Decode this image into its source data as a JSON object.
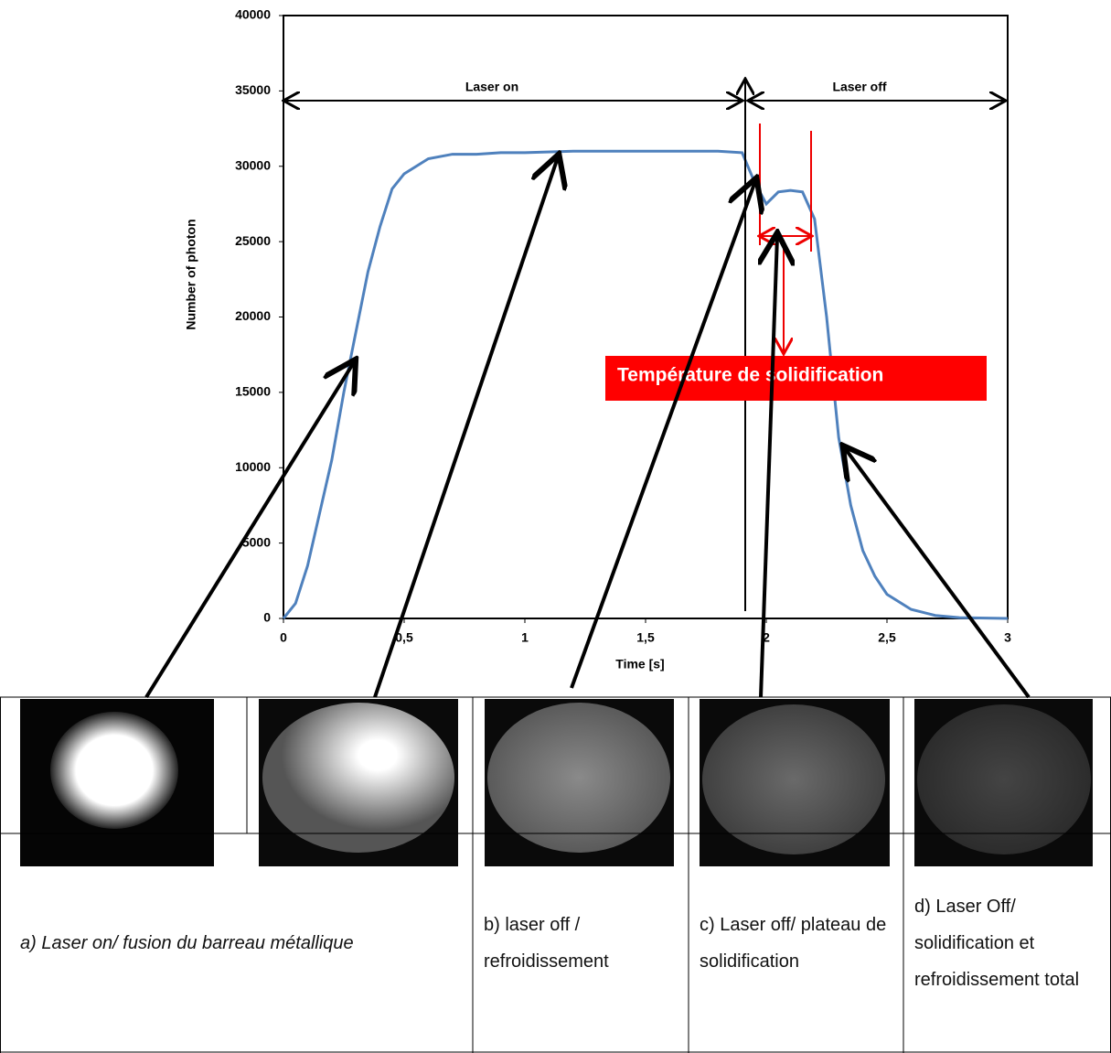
{
  "chart_data": {
    "type": "line",
    "x": [
      0,
      0.05,
      0.1,
      0.15,
      0.2,
      0.25,
      0.3,
      0.35,
      0.4,
      0.45,
      0.5,
      0.55,
      0.6,
      0.7,
      0.8,
      0.9,
      1.0,
      1.2,
      1.4,
      1.6,
      1.8,
      1.9,
      1.95,
      2.0,
      2.05,
      2.1,
      2.15,
      2.2,
      2.25,
      2.3,
      2.35,
      2.4,
      2.45,
      2.5,
      2.6,
      2.7,
      2.8,
      3.0
    ],
    "values": [
      0,
      1000,
      3500,
      7000,
      10500,
      15000,
      19000,
      23000,
      26000,
      28500,
      29500,
      30000,
      30500,
      30800,
      30800,
      30900,
      30900,
      31000,
      31000,
      31000,
      31000,
      30900,
      29000,
      27500,
      28300,
      28400,
      28300,
      26500,
      20000,
      12000,
      7500,
      4500,
      2800,
      1600,
      600,
      200,
      50,
      0
    ],
    "color": "#4f81bd",
    "xlabel": "Time [s]",
    "ylabel": "Number of photon",
    "xlim": [
      0,
      3
    ],
    "xticks": [
      0,
      {
        "value": 0.5,
        "label": "0,5"
      },
      1,
      {
        "value": 1.5,
        "label": "1,5"
      },
      2,
      {
        "value": 2.5,
        "label": "2,5"
      },
      3
    ],
    "ylim": [
      0,
      40000
    ],
    "yticks": [
      0,
      5000,
      10000,
      15000,
      20000,
      25000,
      30000,
      35000,
      40000
    ],
    "annotations": [
      "Laser on",
      "Laser off",
      "Température de solidification"
    ]
  },
  "table": {
    "captions": [
      "a) Laser on/ fusion du barreau métallique",
      "b) laser off / refroidissement",
      "c) Laser off/ plateau de solidification",
      "d) Laser Off/ solidification et refroidissement total"
    ]
  }
}
